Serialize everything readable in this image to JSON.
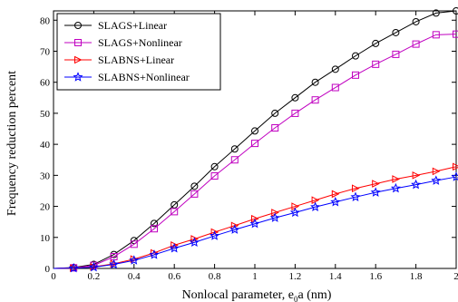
{
  "chart_data": {
    "type": "line",
    "xlabel_parts": [
      "Nonlocal parameter, e",
      "0",
      "a (nm)"
    ],
    "ylabel": "Frequency reduction percent",
    "xlim": [
      0,
      2
    ],
    "ylim": [
      0,
      83
    ],
    "x_ticks": [
      "0",
      "0.2",
      "0.4",
      "0.6",
      "0.8",
      "1",
      "1.2",
      "1.4",
      "1.6",
      "1.8",
      "2"
    ],
    "y_ticks": [
      "0",
      "10",
      "20",
      "30",
      "40",
      "50",
      "60",
      "70",
      "80"
    ],
    "grid": false,
    "legend_position": "top-left",
    "x": [
      0.1,
      0.2,
      0.3,
      0.4,
      0.5,
      0.6,
      0.7,
      0.8,
      0.9,
      1.0,
      1.1,
      1.2,
      1.3,
      1.4,
      1.5,
      1.6,
      1.7,
      1.8,
      1.9,
      2.0
    ],
    "series": [
      {
        "name": "SLAGS+Linear",
        "color": "#000000",
        "marker": "circle",
        "values": [
          0.3,
          1.3,
          4.5,
          9.0,
          14.5,
          20.5,
          26.5,
          32.8,
          38.5,
          44.3,
          50.0,
          55.0,
          60.0,
          64.2,
          68.5,
          72.5,
          76.0,
          79.5,
          82.3,
          83.0
        ]
      },
      {
        "name": "SLAGS+Nonlinear",
        "color": "#c000c0",
        "marker": "square",
        "values": [
          0.2,
          1.0,
          3.8,
          7.8,
          12.8,
          18.3,
          24.0,
          29.8,
          35.0,
          40.3,
          45.3,
          50.0,
          54.3,
          58.3,
          62.3,
          65.8,
          69.0,
          72.3,
          75.3,
          75.5
        ]
      },
      {
        "name": "SLABNS+Linear",
        "color": "#ff0000",
        "marker": "triangle-right",
        "values": [
          0.1,
          0.5,
          1.5,
          3.0,
          5.0,
          7.5,
          9.5,
          11.7,
          13.8,
          16.0,
          18.0,
          20.0,
          22.0,
          24.0,
          25.8,
          27.3,
          28.8,
          30.0,
          31.3,
          32.8
        ]
      },
      {
        "name": "SLABNS+Nonlinear",
        "color": "#0000ff",
        "marker": "star",
        "values": [
          0.1,
          0.4,
          1.3,
          2.6,
          4.4,
          6.5,
          8.4,
          10.5,
          12.5,
          14.4,
          16.3,
          18.0,
          19.8,
          21.4,
          23.0,
          24.5,
          25.8,
          27.0,
          28.3,
          29.5
        ]
      }
    ]
  }
}
